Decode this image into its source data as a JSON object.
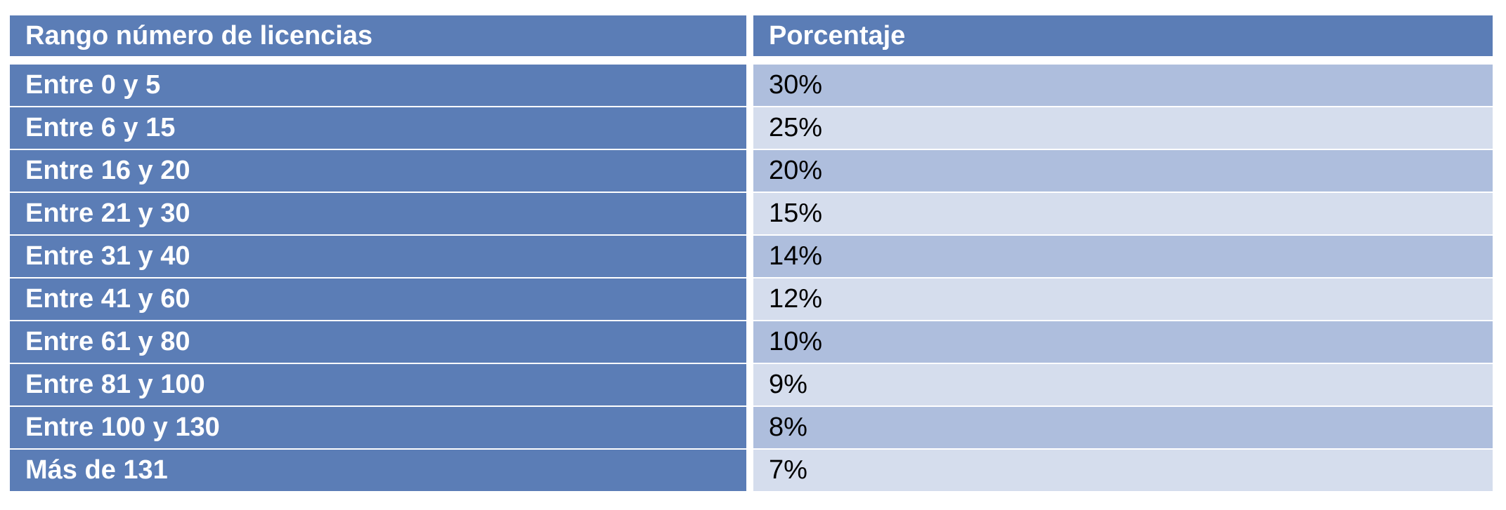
{
  "table": {
    "headers": {
      "range": "Rango número de licencias",
      "percent": "Porcentaje"
    },
    "rows": [
      {
        "range": "Entre 0 y 5",
        "percent": "30%"
      },
      {
        "range": "Entre 6 y 15",
        "percent": "25%"
      },
      {
        "range": "Entre 16 y 20",
        "percent": "20%"
      },
      {
        "range": "Entre 21 y 30",
        "percent": "15%"
      },
      {
        "range": "Entre 31 y 40",
        "percent": "14%"
      },
      {
        "range": "Entre 41 y 60",
        "percent": "12%"
      },
      {
        "range": "Entre 61 y 80",
        "percent": "10%"
      },
      {
        "range": "Entre 81 y 100",
        "percent": "9%"
      },
      {
        "range": "Entre 100 y 130",
        "percent": "8%"
      },
      {
        "range": "Más de 131",
        "percent": "7%"
      }
    ],
    "colors": {
      "header": "#5b7db6",
      "first_column": "#5b7db6",
      "band_dark": "#aebedd",
      "band_light": "#d5dded"
    }
  }
}
